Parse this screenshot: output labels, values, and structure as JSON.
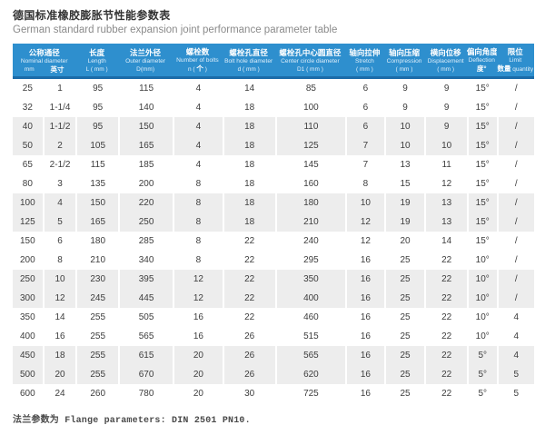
{
  "page": {
    "title_zh": "德国标准橡胶膨胀节性能参数表",
    "title_en": "German standard rubber expansion joint performance parameter table",
    "footnote": "法兰参数为 Flange parameters: DIN 2501 PN10."
  },
  "colors": {
    "header_bg": "#2e8fce",
    "header_border": "#1b6ba8",
    "stripe": "#ededed",
    "body_text": "#3d3d3d",
    "title_color": "#333333",
    "subtitle_color": "#8b8b8b"
  },
  "table": {
    "columns": [
      {
        "zh": "公称通径",
        "en": "Nominal diameter",
        "unit": "mm|英寸",
        "colspan": 2
      },
      {
        "zh": "长度",
        "en": "Length",
        "unit": "L ( mm )"
      },
      {
        "zh": "法兰外径",
        "en": "Outer diameter",
        "unit": "D(mm)"
      },
      {
        "zh": "螺栓数",
        "en": "Number of bolts",
        "unit": "n ( 个 )"
      },
      {
        "zh": "螺栓孔直径",
        "en": "Bolt hole diameter",
        "unit": "d ( mm )"
      },
      {
        "zh": "螺栓孔中心圆直径",
        "en": "Center circle diameter",
        "unit": "D1 ( mm )"
      },
      {
        "zh": "轴向拉伸",
        "en": "Stretch",
        "unit": "( mm )"
      },
      {
        "zh": "轴向压缩",
        "en": "Compression",
        "unit": "( mm )"
      },
      {
        "zh": "横向位移",
        "en": "Displacement",
        "unit": "( mm )"
      },
      {
        "zh": "偏向角度",
        "en": "Deflection",
        "unit": "度°"
      },
      {
        "zh": "限位",
        "en": "Limit",
        "unit": "数量 quantity"
      }
    ],
    "rows": [
      [
        "25",
        "1",
        "95",
        "115",
        "4",
        "14",
        "85",
        "6",
        "9",
        "9",
        "15°",
        "/"
      ],
      [
        "32",
        "1-1/4",
        "95",
        "140",
        "4",
        "18",
        "100",
        "6",
        "9",
        "9",
        "15°",
        "/"
      ],
      [
        "40",
        "1-1/2",
        "95",
        "150",
        "4",
        "18",
        "110",
        "6",
        "10",
        "9",
        "15°",
        "/"
      ],
      [
        "50",
        "2",
        "105",
        "165",
        "4",
        "18",
        "125",
        "7",
        "10",
        "10",
        "15°",
        "/"
      ],
      [
        "65",
        "2-1/2",
        "115",
        "185",
        "4",
        "18",
        "145",
        "7",
        "13",
        "11",
        "15°",
        "/"
      ],
      [
        "80",
        "3",
        "135",
        "200",
        "8",
        "18",
        "160",
        "8",
        "15",
        "12",
        "15°",
        "/"
      ],
      [
        "100",
        "4",
        "150",
        "220",
        "8",
        "18",
        "180",
        "10",
        "19",
        "13",
        "15°",
        "/"
      ],
      [
        "125",
        "5",
        "165",
        "250",
        "8",
        "18",
        "210",
        "12",
        "19",
        "13",
        "15°",
        "/"
      ],
      [
        "150",
        "6",
        "180",
        "285",
        "8",
        "22",
        "240",
        "12",
        "20",
        "14",
        "15°",
        "/"
      ],
      [
        "200",
        "8",
        "210",
        "340",
        "8",
        "22",
        "295",
        "16",
        "25",
        "22",
        "10°",
        "/"
      ],
      [
        "250",
        "10",
        "230",
        "395",
        "12",
        "22",
        "350",
        "16",
        "25",
        "22",
        "10°",
        "/"
      ],
      [
        "300",
        "12",
        "245",
        "445",
        "12",
        "22",
        "400",
        "16",
        "25",
        "22",
        "10°",
        "/"
      ],
      [
        "350",
        "14",
        "255",
        "505",
        "16",
        "22",
        "460",
        "16",
        "25",
        "22",
        "10°",
        "4"
      ],
      [
        "400",
        "16",
        "255",
        "565",
        "16",
        "26",
        "515",
        "16",
        "25",
        "22",
        "10°",
        "4"
      ],
      [
        "450",
        "18",
        "255",
        "615",
        "20",
        "26",
        "565",
        "16",
        "25",
        "22",
        "5°",
        "4"
      ],
      [
        "500",
        "20",
        "255",
        "670",
        "20",
        "26",
        "620",
        "16",
        "25",
        "22",
        "5°",
        "5"
      ],
      [
        "600",
        "24",
        "260",
        "780",
        "20",
        "30",
        "725",
        "16",
        "25",
        "22",
        "5°",
        "5"
      ]
    ]
  }
}
